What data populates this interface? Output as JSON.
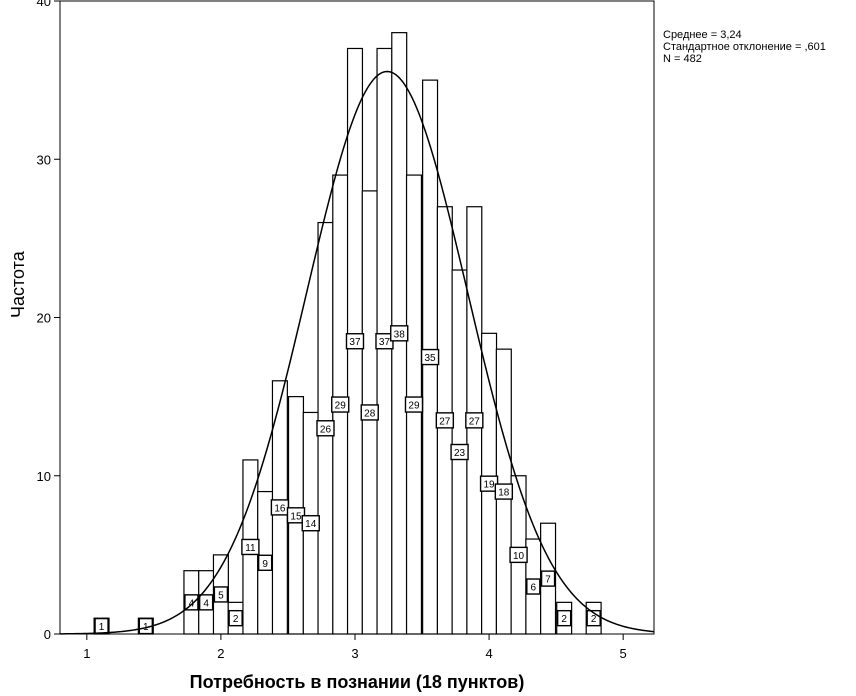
{
  "chart_data": {
    "type": "bar",
    "title": "",
    "xlabel": "Потребность в познании (18 пунктов)",
    "ylabel": "Частота",
    "xlim": [
      0.8,
      5.23
    ],
    "ylim": [
      0,
      40
    ],
    "x_ticks": [
      "1",
      "2",
      "3",
      "4",
      "5"
    ],
    "y_ticks": [
      "0",
      "10",
      "20",
      "30",
      "40"
    ],
    "bin_width": 0.1111,
    "bars": [
      {
        "x": 1.11,
        "value": 1
      },
      {
        "x": 1.44,
        "value": 1
      },
      {
        "x": 1.78,
        "value": 4
      },
      {
        "x": 1.89,
        "value": 4
      },
      {
        "x": 2.0,
        "value": 5
      },
      {
        "x": 2.11,
        "value": 2
      },
      {
        "x": 2.22,
        "value": 11
      },
      {
        "x": 2.33,
        "value": 9
      },
      {
        "x": 2.44,
        "value": 16
      },
      {
        "x": 2.56,
        "value": 15
      },
      {
        "x": 2.67,
        "value": 14
      },
      {
        "x": 2.78,
        "value": 26
      },
      {
        "x": 2.89,
        "value": 29
      },
      {
        "x": 3.0,
        "value": 37
      },
      {
        "x": 3.11,
        "value": 28
      },
      {
        "x": 3.22,
        "value": 37
      },
      {
        "x": 3.33,
        "value": 38
      },
      {
        "x": 3.44,
        "value": 29
      },
      {
        "x": 3.56,
        "value": 35
      },
      {
        "x": 3.67,
        "value": 27
      },
      {
        "x": 3.78,
        "value": 23
      },
      {
        "x": 3.89,
        "value": 27
      },
      {
        "x": 4.0,
        "value": 19
      },
      {
        "x": 4.11,
        "value": 18
      },
      {
        "x": 4.22,
        "value": 10
      },
      {
        "x": 4.33,
        "value": 6
      },
      {
        "x": 4.44,
        "value": 7
      },
      {
        "x": 4.56,
        "value": 2
      },
      {
        "x": 4.78,
        "value": 2
      }
    ],
    "normal_curve": {
      "mean": 3.24,
      "sd": 0.601,
      "n": 482
    },
    "stats_lines": [
      "Среднее = 3,24",
      "Стандартное отклонение = ,601",
      "N = 482"
    ],
    "legend_position": "top-right",
    "grid": false
  }
}
